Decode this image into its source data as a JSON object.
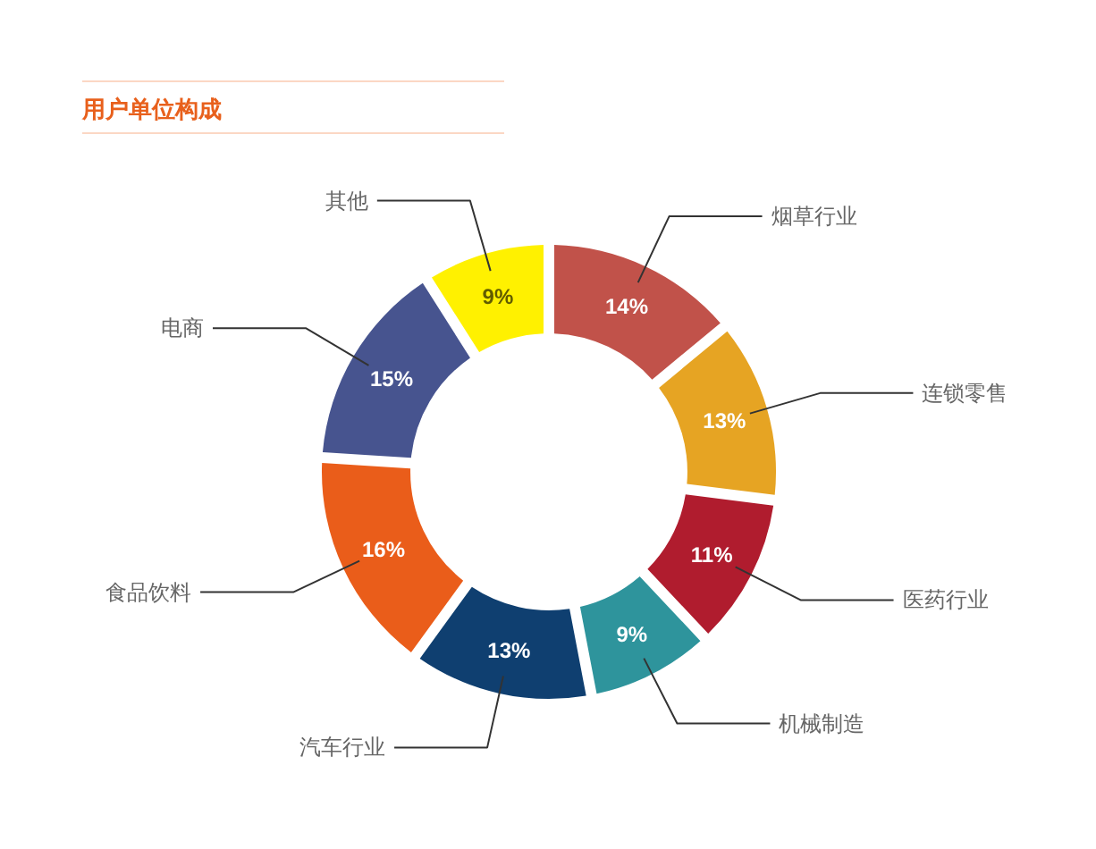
{
  "chart_data": {
    "type": "donut",
    "title": "用户单位构成",
    "categories": [
      "烟草行业",
      "连锁零售",
      "医药行业",
      "机械制造",
      "汽车行业",
      "食品饮料",
      "电商",
      "其他"
    ],
    "values": [
      14,
      13,
      11,
      9,
      13,
      16,
      15,
      9
    ],
    "colors": [
      "#c1524a",
      "#e6a423",
      "#b01c2e",
      "#2e949c",
      "#0f3f70",
      "#ea5d1a",
      "#47548f",
      "#fff100"
    ],
    "value_labels": [
      "14%",
      "13%",
      "11%",
      "9%",
      "13%",
      "16%",
      "15%",
      "9%"
    ]
  }
}
